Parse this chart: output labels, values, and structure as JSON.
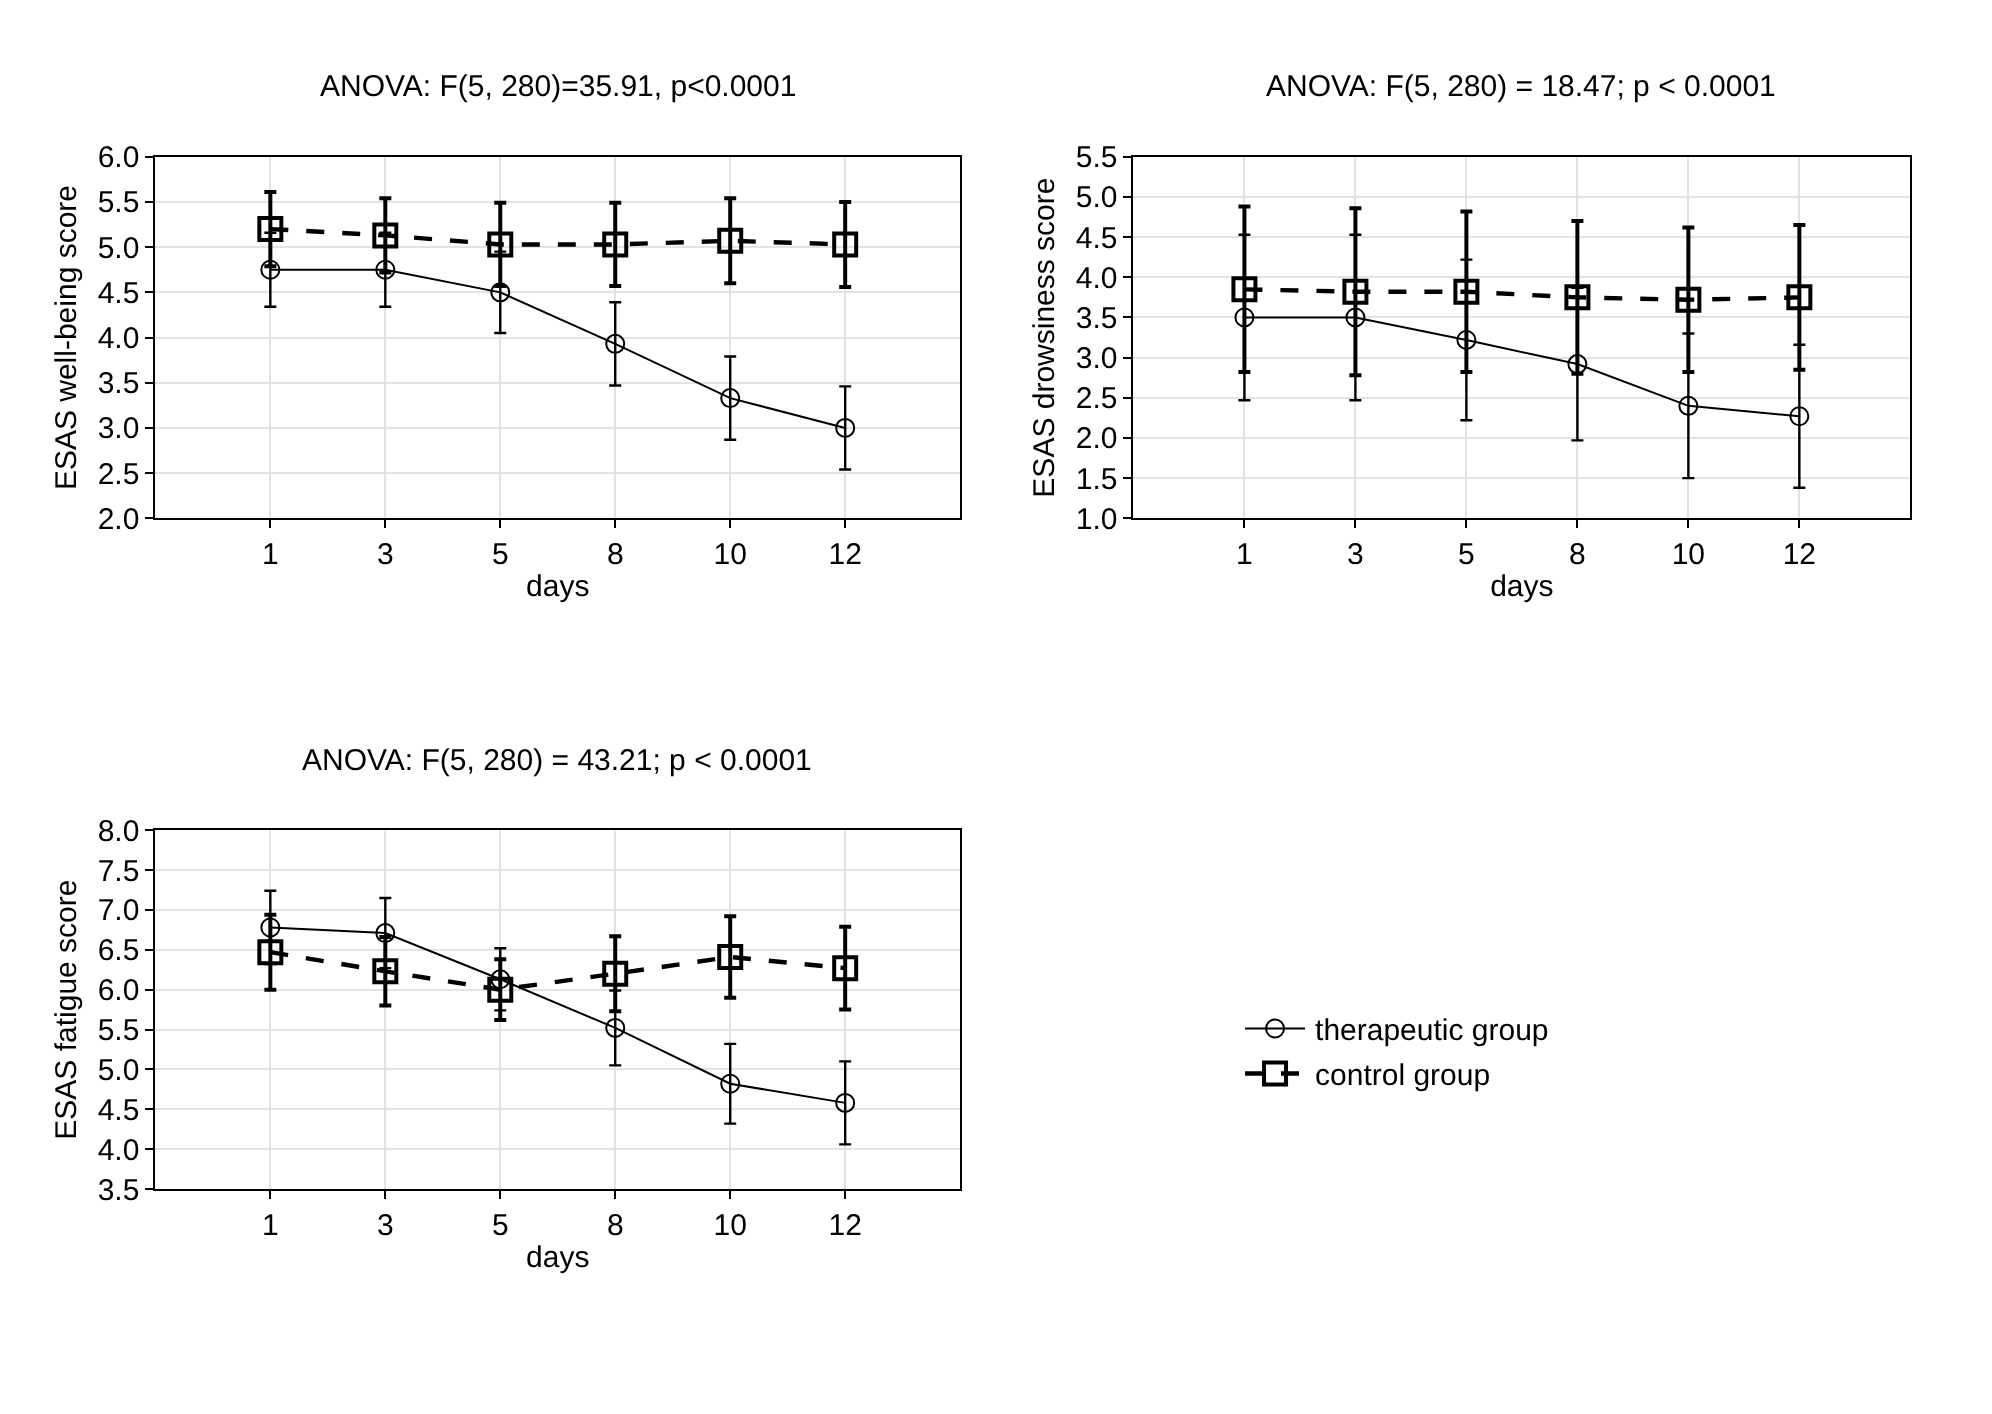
{
  "chart_data": [
    {
      "type": "line",
      "title": "ANOVA: F(5, 280)=35.91, p<0.0001",
      "xlabel": "days",
      "ylabel": "ESAS well-being score",
      "categories": [
        "1",
        "3",
        "5",
        "8",
        "10",
        "12"
      ],
      "ylim": [
        2.0,
        6.0
      ],
      "yticks": [
        {
          "value": 2.0,
          "label": "2.0"
        },
        {
          "value": 2.5,
          "label": "2.5"
        },
        {
          "value": 3.0,
          "label": "3.0"
        },
        {
          "value": 3.5,
          "label": "3.5"
        },
        {
          "value": 4.0,
          "label": "4.0"
        },
        {
          "value": 4.5,
          "label": "4.5"
        },
        {
          "value": 5.0,
          "label": "5.0"
        },
        {
          "value": 5.5,
          "label": "5.5"
        },
        {
          "value": 6.0,
          "label": "6.0"
        }
      ],
      "grid": true,
      "series": [
        {
          "color": "#000000",
          "marker": "circle",
          "line_style": "solid",
          "values": [
            4.75,
            4.75,
            4.5,
            3.93,
            3.33,
            3.0
          ],
          "errors": [
            0.41,
            0.41,
            0.45,
            0.46,
            0.46,
            0.46
          ]
        },
        {
          "color": "#000000",
          "marker": "square",
          "line_style": "dashed",
          "values": [
            5.2,
            5.13,
            5.03,
            5.03,
            5.07,
            5.03
          ],
          "errors": [
            0.41,
            0.41,
            0.46,
            0.46,
            0.47,
            0.47
          ]
        }
      ]
    },
    {
      "type": "line",
      "title": "ANOVA: F(5, 280) = 18.47; p < 0.0001",
      "xlabel": "days",
      "ylabel": "ESAS drowsiness score",
      "categories": [
        "1",
        "3",
        "5",
        "8",
        "10",
        "12"
      ],
      "ylim": [
        1.0,
        5.5
      ],
      "yticks": [
        {
          "value": 1.0,
          "label": "1.0"
        },
        {
          "value": 1.5,
          "label": "1.5"
        },
        {
          "value": 2.0,
          "label": "2.0"
        },
        {
          "value": 2.5,
          "label": "2.5"
        },
        {
          "value": 3.0,
          "label": "3.0"
        },
        {
          "value": 3.5,
          "label": "3.5"
        },
        {
          "value": 4.0,
          "label": "4.0"
        },
        {
          "value": 4.5,
          "label": "4.5"
        },
        {
          "value": 5.0,
          "label": "5.0"
        },
        {
          "value": 5.5,
          "label": "5.5"
        }
      ],
      "grid": true,
      "series": [
        {
          "color": "#000000",
          "marker": "circle",
          "line_style": "solid",
          "values": [
            3.5,
            3.5,
            3.22,
            2.92,
            2.4,
            2.27
          ],
          "errors": [
            1.03,
            1.03,
            1.0,
            0.95,
            0.9,
            0.89
          ]
        },
        {
          "color": "#000000",
          "marker": "square",
          "line_style": "dashed",
          "values": [
            3.85,
            3.82,
            3.82,
            3.75,
            3.72,
            3.75
          ],
          "errors": [
            1.03,
            1.04,
            1.0,
            0.95,
            0.9,
            0.9
          ]
        }
      ]
    },
    {
      "type": "line",
      "title": "ANOVA: F(5, 280) = 43.21; p < 0.0001",
      "xlabel": "days",
      "ylabel": "ESAS fatigue score",
      "categories": [
        "1",
        "3",
        "5",
        "8",
        "10",
        "12"
      ],
      "ylim": [
        3.5,
        8.0
      ],
      "yticks": [
        {
          "value": 3.5,
          "label": "3.5"
        },
        {
          "value": 4.0,
          "label": "4.0"
        },
        {
          "value": 4.5,
          "label": "4.5"
        },
        {
          "value": 5.0,
          "label": "5.0"
        },
        {
          "value": 5.5,
          "label": "5.5"
        },
        {
          "value": 6.0,
          "label": "6.0"
        },
        {
          "value": 6.5,
          "label": "6.5"
        },
        {
          "value": 7.0,
          "label": "7.0"
        },
        {
          "value": 7.5,
          "label": "7.5"
        },
        {
          "value": 8.0,
          "label": "8.0"
        }
      ],
      "grid": true,
      "legend": "right",
      "series": [
        {
          "name": "therapeutic group",
          "color": "#000000",
          "marker": "circle",
          "line_style": "solid",
          "values": [
            6.78,
            6.71,
            6.13,
            5.52,
            4.82,
            4.58
          ],
          "errors": [
            0.46,
            0.44,
            0.39,
            0.47,
            0.5,
            0.52
          ]
        },
        {
          "name": "control group",
          "color": "#000000",
          "marker": "square",
          "line_style": "dashed",
          "values": [
            6.47,
            6.23,
            6.0,
            6.2,
            6.41,
            6.27
          ],
          "errors": [
            0.47,
            0.43,
            0.38,
            0.47,
            0.51,
            0.52
          ]
        }
      ]
    }
  ]
}
